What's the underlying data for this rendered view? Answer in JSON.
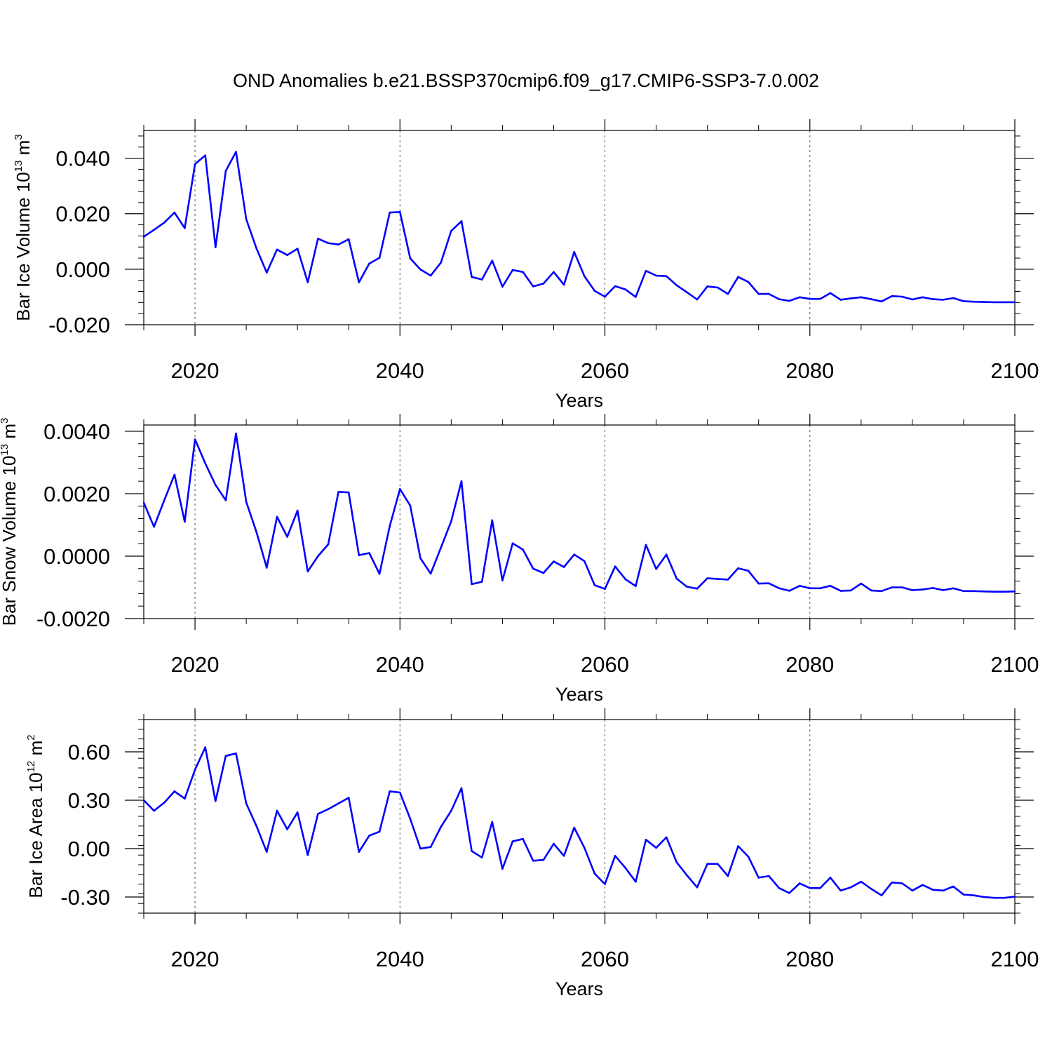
{
  "figure": {
    "title": "OND Anomalies b.e21.BSSP370cmip6.f09_g17.CMIP6-SSP3-7.0.002",
    "line_color": "#0000ff"
  },
  "chart_data": [
    {
      "type": "line",
      "title": "OND Anomalies b.e21.BSSP370cmip6.f09_g17.CMIP6-SSP3-7.0.002",
      "ylabel": "Bar Ice Volume 10",
      "ylabel_exp1": "13",
      "ylabel_tail": " m",
      "ylabel_exp2": "3",
      "xlabel": "Years",
      "xlim": [
        2015,
        2100
      ],
      "ylim": [
        -0.02,
        0.05
      ],
      "xticks": [
        2020,
        2040,
        2060,
        2080,
        2100
      ],
      "xtick_labels": [
        "2020",
        "2040",
        "2060",
        "2080",
        "2100"
      ],
      "yticks": [
        -0.02,
        0.0,
        0.02,
        0.04
      ],
      "ytick_labels": [
        "-0.020",
        "0.000",
        "0.020",
        "0.040"
      ],
      "grid_x": "dashed vertical at major ticks",
      "series": [
        {
          "x": [
            2015,
            2016,
            2017,
            2018,
            2019,
            2020,
            2021,
            2022,
            2023,
            2024,
            2025,
            2026,
            2027,
            2028,
            2029,
            2030,
            2031,
            2032,
            2033,
            2034,
            2035,
            2036,
            2037,
            2038,
            2039,
            2040,
            2041,
            2042,
            2043,
            2044,
            2045,
            2046,
            2047,
            2048,
            2049,
            2050,
            2051,
            2052,
            2053,
            2054,
            2055,
            2056,
            2057,
            2058,
            2059,
            2060,
            2061,
            2062,
            2063,
            2064,
            2065,
            2066,
            2067,
            2068,
            2069,
            2070,
            2071,
            2072,
            2073,
            2074,
            2075,
            2076,
            2077,
            2078,
            2079,
            2080,
            2081,
            2082,
            2083,
            2084,
            2085,
            2086,
            2087,
            2088,
            2089,
            2090,
            2091,
            2092,
            2093,
            2094,
            2095,
            2096,
            2097,
            2098,
            2099,
            2100
          ],
          "values": [
            0.0117,
            0.0142,
            0.0168,
            0.0204,
            0.0148,
            0.0379,
            0.041,
            0.0079,
            0.0354,
            0.0423,
            0.018,
            0.0075,
            -0.0012,
            0.0071,
            0.0051,
            0.0074,
            -0.0047,
            0.011,
            0.0094,
            0.0089,
            0.0108,
            -0.0047,
            0.002,
            0.0041,
            0.0204,
            0.0206,
            0.0039,
            -0.0001,
            -0.0023,
            0.0024,
            0.0138,
            0.0173,
            -0.0028,
            -0.0037,
            0.0031,
            -0.0063,
            -0.0003,
            -0.001,
            -0.0062,
            -0.0052,
            -0.001,
            -0.0056,
            0.0062,
            -0.0025,
            -0.0078,
            -0.0099,
            -0.0061,
            -0.0073,
            -0.01,
            -0.0006,
            -0.0023,
            -0.0025,
            -0.0058,
            -0.0083,
            -0.0109,
            -0.0062,
            -0.0066,
            -0.0089,
            -0.0028,
            -0.0046,
            -0.0089,
            -0.0089,
            -0.0108,
            -0.0114,
            -0.0101,
            -0.0107,
            -0.0107,
            -0.0086,
            -0.011,
            -0.0105,
            -0.0101,
            -0.0108,
            -0.0116,
            -0.0097,
            -0.0099,
            -0.0109,
            -0.0101,
            -0.0108,
            -0.011,
            -0.0104,
            -0.0115,
            -0.0117,
            -0.0118,
            -0.0119,
            -0.0119,
            -0.0119
          ]
        }
      ]
    },
    {
      "type": "line",
      "ylabel": "Bar Snow Volume 10",
      "ylabel_exp1": "13",
      "ylabel_tail": " m",
      "ylabel_exp2": "3",
      "xlabel": "Years",
      "xlim": [
        2015,
        2100
      ],
      "ylim": [
        -0.002,
        0.0042
      ],
      "xticks": [
        2020,
        2040,
        2060,
        2080,
        2100
      ],
      "xtick_labels": [
        "2020",
        "2040",
        "2060",
        "2080",
        "2100"
      ],
      "yticks": [
        -0.002,
        0.0,
        0.002,
        0.004
      ],
      "ytick_labels": [
        "-0.0020",
        "0.0000",
        "0.0020",
        "0.0040"
      ],
      "grid_x": "dashed vertical at major ticks",
      "series": [
        {
          "x": [
            2015,
            2016,
            2017,
            2018,
            2019,
            2020,
            2021,
            2022,
            2023,
            2024,
            2025,
            2026,
            2027,
            2028,
            2029,
            2030,
            2031,
            2032,
            2033,
            2034,
            2035,
            2036,
            2037,
            2038,
            2039,
            2040,
            2041,
            2042,
            2043,
            2044,
            2045,
            2046,
            2047,
            2048,
            2049,
            2050,
            2051,
            2052,
            2053,
            2054,
            2055,
            2056,
            2057,
            2058,
            2059,
            2060,
            2061,
            2062,
            2063,
            2064,
            2065,
            2066,
            2067,
            2068,
            2069,
            2070,
            2071,
            2072,
            2073,
            2074,
            2075,
            2076,
            2077,
            2078,
            2079,
            2080,
            2081,
            2082,
            2083,
            2084,
            2085,
            2086,
            2087,
            2088,
            2089,
            2090,
            2091,
            2092,
            2093,
            2094,
            2095,
            2096,
            2097,
            2098,
            2099,
            2100
          ],
          "values": [
            0.00171,
            0.00094,
            0.00179,
            0.00261,
            0.0011,
            0.00374,
            0.00297,
            0.00228,
            0.00179,
            0.00393,
            0.00174,
            0.00077,
            -0.00037,
            0.00126,
            0.00062,
            0.00146,
            -0.00049,
            0.0,
            0.00038,
            0.00206,
            0.00204,
            3e-05,
            0.0001,
            -0.00057,
            0.00096,
            0.00215,
            0.00162,
            -7e-05,
            -0.00056,
            0.00027,
            0.00112,
            0.0024,
            -0.0009,
            -0.00082,
            0.00115,
            -0.00078,
            0.00041,
            0.00021,
            -0.0004,
            -0.00054,
            -0.00017,
            -0.00035,
            5e-05,
            -0.00016,
            -0.00093,
            -0.00105,
            -0.00033,
            -0.00074,
            -0.00096,
            0.00036,
            -0.00041,
            5e-05,
            -0.00072,
            -0.00098,
            -0.00104,
            -0.00071,
            -0.00073,
            -0.00075,
            -0.00039,
            -0.00047,
            -0.00088,
            -0.00087,
            -0.00103,
            -0.00111,
            -0.00095,
            -0.00103,
            -0.00103,
            -0.00095,
            -0.00111,
            -0.0011,
            -0.00088,
            -0.0011,
            -0.00112,
            -0.001,
            -0.001,
            -0.00109,
            -0.00107,
            -0.00102,
            -0.00109,
            -0.00103,
            -0.00112,
            -0.00112,
            -0.00113,
            -0.00114,
            -0.00114,
            -0.00113
          ]
        }
      ]
    },
    {
      "type": "line",
      "ylabel": "Bar Ice Area 10",
      "ylabel_exp1": "12",
      "ylabel_tail": " m",
      "ylabel_exp2": "2",
      "xlabel": "Years",
      "xlim": [
        2015,
        2100
      ],
      "ylim": [
        -0.4,
        0.8
      ],
      "xticks": [
        2020,
        2040,
        2060,
        2080,
        2100
      ],
      "xtick_labels": [
        "2020",
        "2040",
        "2060",
        "2080",
        "2100"
      ],
      "yticks": [
        -0.3,
        0.0,
        0.3,
        0.6
      ],
      "ytick_labels": [
        "-0.30",
        "0.00",
        "0.30",
        "0.60"
      ],
      "grid_x": "dashed vertical at major ticks",
      "series": [
        {
          "x": [
            2015,
            2016,
            2017,
            2018,
            2019,
            2020,
            2021,
            2022,
            2023,
            2024,
            2025,
            2026,
            2027,
            2028,
            2029,
            2030,
            2031,
            2032,
            2033,
            2034,
            2035,
            2036,
            2037,
            2038,
            2039,
            2040,
            2041,
            2042,
            2043,
            2044,
            2045,
            2046,
            2047,
            2048,
            2049,
            2050,
            2051,
            2052,
            2053,
            2054,
            2055,
            2056,
            2057,
            2058,
            2059,
            2060,
            2061,
            2062,
            2063,
            2064,
            2065,
            2066,
            2067,
            2068,
            2069,
            2070,
            2071,
            2072,
            2073,
            2074,
            2075,
            2076,
            2077,
            2078,
            2079,
            2080,
            2081,
            2082,
            2083,
            2084,
            2085,
            2086,
            2087,
            2088,
            2089,
            2090,
            2091,
            2092,
            2093,
            2094,
            2095,
            2096,
            2097,
            2098,
            2099,
            2100
          ],
          "values": [
            0.3,
            0.235,
            0.285,
            0.355,
            0.31,
            0.49,
            0.628,
            0.295,
            0.575,
            0.59,
            0.28,
            0.14,
            -0.02,
            0.235,
            0.12,
            0.225,
            -0.04,
            0.215,
            0.245,
            0.28,
            0.315,
            -0.02,
            0.08,
            0.105,
            0.355,
            0.348,
            0.185,
            0.0,
            0.01,
            0.135,
            0.235,
            0.375,
            -0.015,
            -0.055,
            0.165,
            -0.125,
            0.045,
            0.06,
            -0.075,
            -0.07,
            0.03,
            -0.045,
            0.13,
            0.005,
            -0.155,
            -0.22,
            -0.045,
            -0.12,
            -0.205,
            0.055,
            0.005,
            0.07,
            -0.085,
            -0.165,
            -0.24,
            -0.095,
            -0.095,
            -0.17,
            0.015,
            -0.05,
            -0.18,
            -0.17,
            -0.245,
            -0.275,
            -0.215,
            -0.245,
            -0.245,
            -0.18,
            -0.26,
            -0.24,
            -0.205,
            -0.25,
            -0.29,
            -0.21,
            -0.215,
            -0.26,
            -0.225,
            -0.255,
            -0.26,
            -0.235,
            -0.285,
            -0.29,
            -0.3,
            -0.305,
            -0.305,
            -0.298
          ]
        }
      ]
    }
  ]
}
